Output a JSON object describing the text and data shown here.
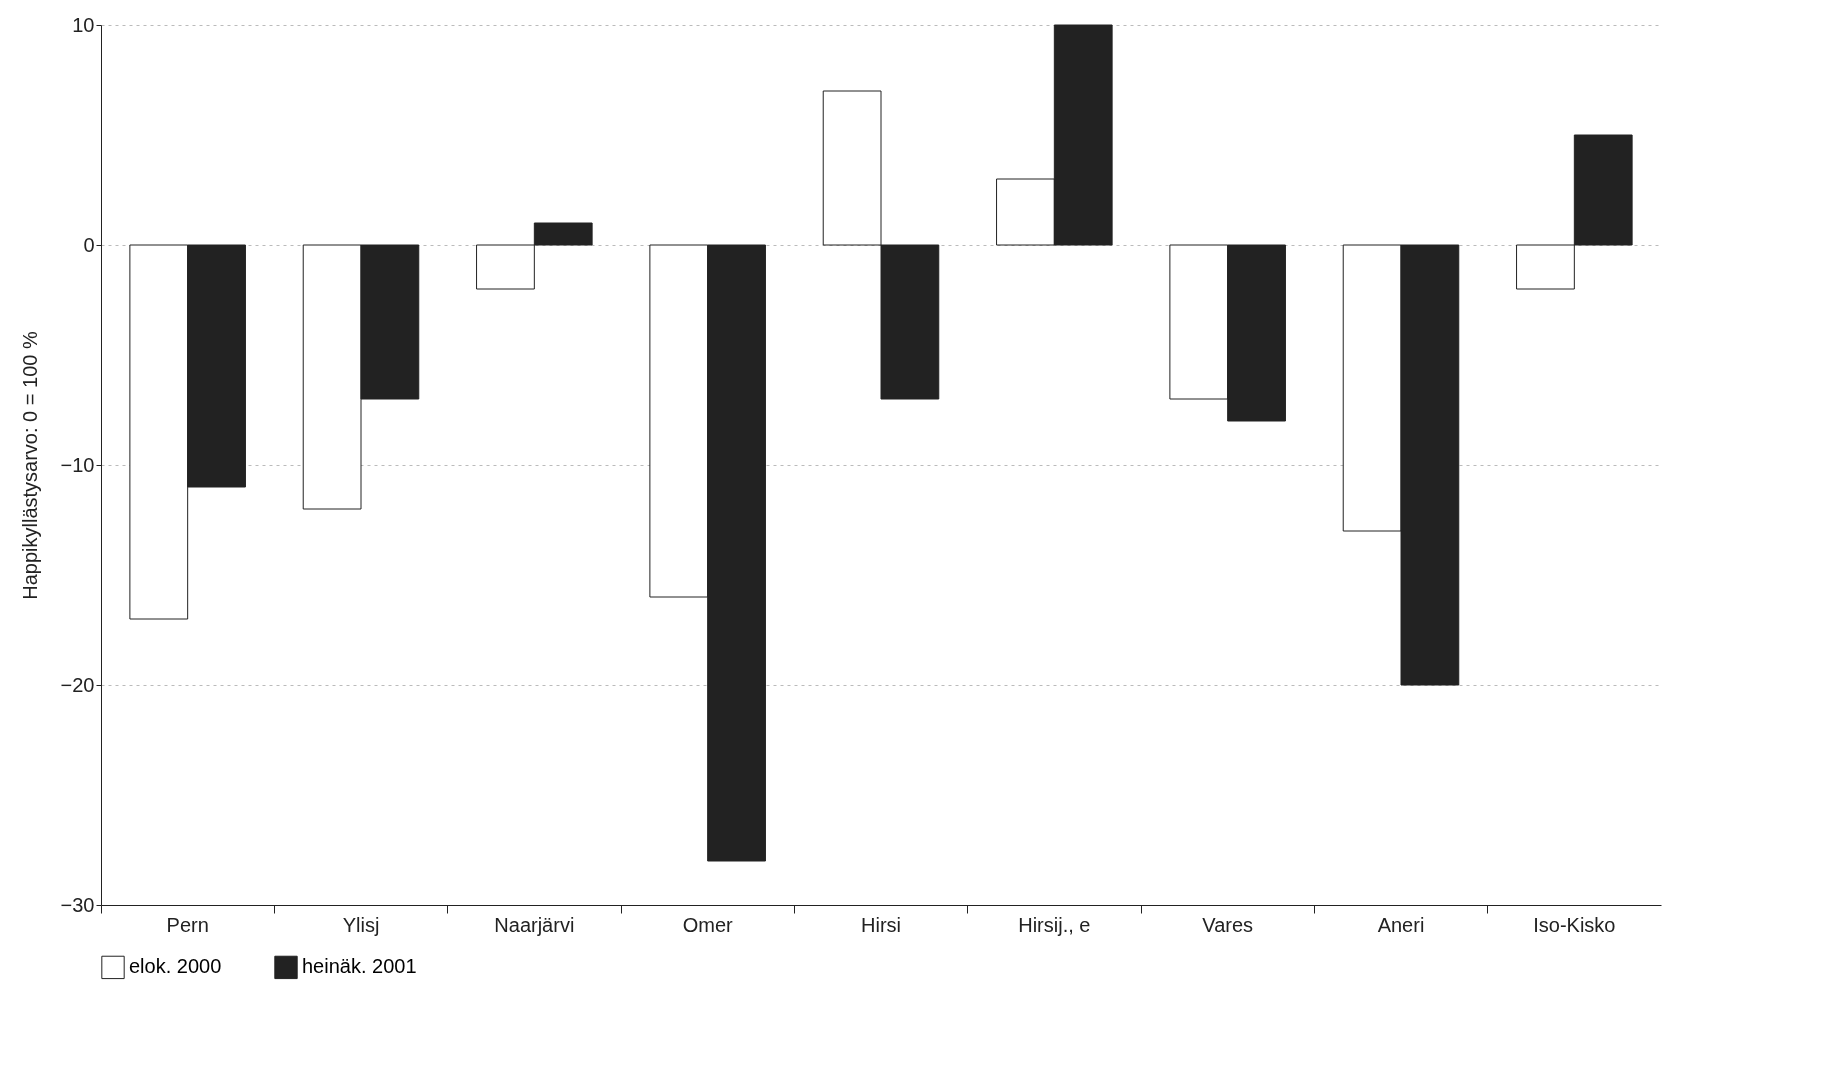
{
  "chart_data": {
    "type": "bar",
    "ylabel": "Happikyllästysarvo: 0 = 100 %",
    "categories": [
      "Pern",
      "Ylisj",
      "Naarjärvi",
      "Omer",
      "Hirsi",
      "Hirsij., e",
      "Vares",
      "Aneri",
      "Iso-Kisko"
    ],
    "series": [
      {
        "name": "elok. 2000",
        "color": "#ffffff",
        "values": [
          -17,
          -12,
          -2,
          -16,
          7,
          3,
          -7,
          -13,
          -2
        ]
      },
      {
        "name": "heinäk. 2001",
        "color": "#222222",
        "values": [
          -11,
          -7,
          1,
          -28,
          -7,
          10,
          -8,
          -20,
          5
        ]
      }
    ],
    "ylim": [
      -30,
      10
    ],
    "yticks": [
      -30,
      -20,
      -10,
      0,
      10
    ],
    "grid": "y",
    "legend": "bottom"
  }
}
